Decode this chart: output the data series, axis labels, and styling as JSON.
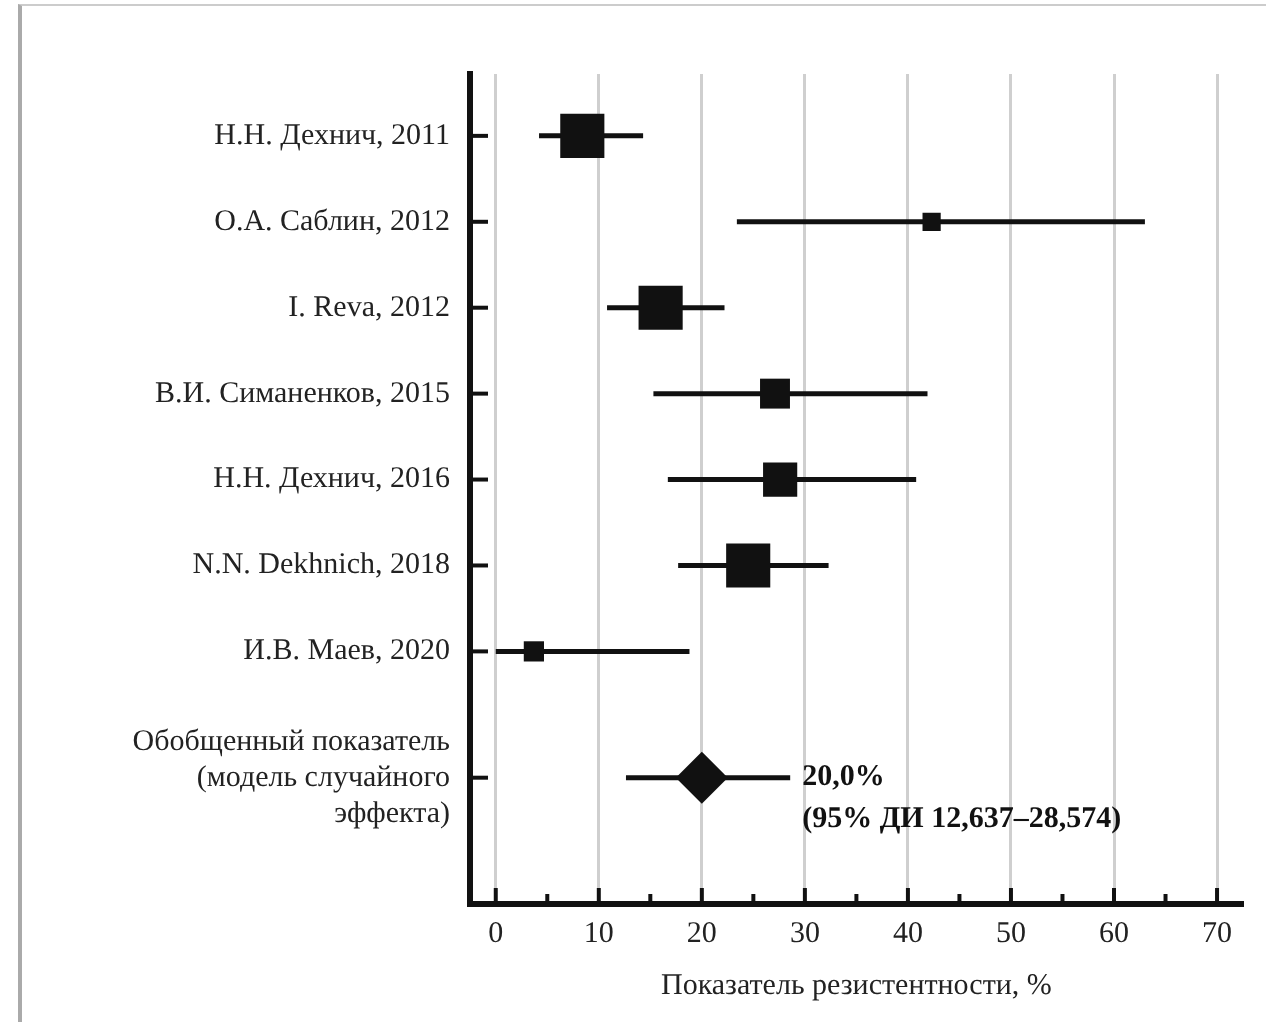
{
  "chart_data": {
    "type": "bubble",
    "orientation": "horizontal",
    "xlabel": "Показатель резистентности, %",
    "categories": [
      "Н.Н. Дехнич, 2011",
      "О.А. Саблин, 2012",
      "I. Reva, 2012",
      "В.И. Симаненков, 2015",
      "Н.Н. Дехнич, 2016",
      "N.N. Dekhnich, 2018",
      "И.В. Маев, 2020",
      "Обобщенный показатель\n(модель случайного\nэффекта)"
    ],
    "xlim": [
      -2.5,
      72.5
    ],
    "xticks": [
      0,
      {
        "value": 5,
        "label": null
      },
      10,
      {
        "value": 15,
        "label": null
      },
      20,
      {
        "value": 25,
        "label": null
      },
      30,
      {
        "value": 35,
        "label": null
      },
      40,
      {
        "value": 45,
        "label": null
      },
      50,
      {
        "value": 55,
        "label": null
      },
      60,
      {
        "value": 65,
        "label": null
      },
      70
    ],
    "grid": "x",
    "series": [
      {
        "marker": "square",
        "color": "#111111",
        "values": [
          8.4,
          42.3,
          16.0,
          27.1,
          27.6,
          24.5,
          3.7,
          null
        ],
        "errors": [
          [
            4.2,
            14.3
          ],
          [
            23.4,
            63.0
          ],
          [
            10.8,
            22.2
          ],
          [
            15.3,
            41.9
          ],
          [
            16.7,
            40.8
          ],
          [
            17.7,
            32.3
          ],
          [
            0,
            18.8
          ],
          null
        ],
        "sizes": [
          1,
          0.17,
          1,
          0.46,
          0.6,
          1,
          0.21,
          null
        ]
      },
      {
        "type": "scatter",
        "marker": "diamond",
        "color": "#111111",
        "values": [
          null,
          null,
          null,
          null,
          null,
          null,
          null,
          20.0
        ],
        "errors": [
          null,
          null,
          null,
          null,
          null,
          null,
          null,
          [
            12.637,
            28.574
          ]
        ]
      }
    ],
    "annotations": [
      "20,0%\n(95% ДИ 12,637–28,574)"
    ]
  }
}
